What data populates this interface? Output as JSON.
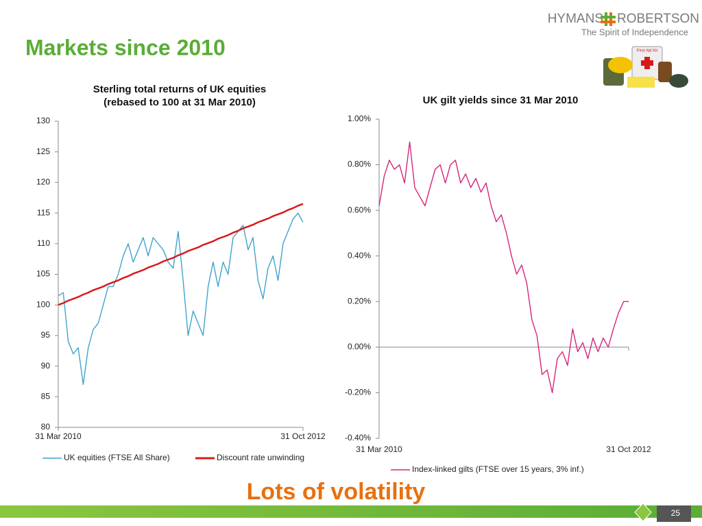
{
  "header": {
    "title": "Markets since 2010",
    "logo_left": "HYMANS",
    "logo_right": "ROBERTSON",
    "tagline": "The Spirit of Independence",
    "kit_label": "First Aid Kit"
  },
  "chart_data": [
    {
      "type": "line",
      "title": "Sterling total returns of UK equities",
      "subtitle": "(rebased to 100 at 31 Mar 2010)",
      "categories": [
        "31 Mar 2010",
        null,
        null,
        null,
        null,
        null,
        null,
        null,
        null,
        null,
        null,
        null,
        null,
        null,
        null,
        null,
        null,
        null,
        null,
        null,
        null,
        null,
        null,
        null,
        null,
        null,
        null,
        null,
        null,
        null,
        null,
        null,
        null,
        null,
        null,
        null,
        null,
        null,
        null,
        null,
        null,
        null,
        null,
        null,
        null,
        null,
        null,
        null,
        null,
        "31 Oct 2012"
      ],
      "series": [
        {
          "name": "UK equities (FTSE All Share)",
          "color": "#3fa3cc",
          "values": [
            101.5,
            102,
            94,
            92,
            93,
            87,
            93,
            96,
            97,
            100,
            103,
            103,
            105,
            108,
            110,
            107,
            109,
            111,
            108,
            111,
            110,
            109,
            107,
            106,
            112,
            104,
            95,
            99,
            97,
            95,
            103,
            107,
            103,
            107,
            105,
            111,
            112,
            113,
            109,
            111,
            104,
            101,
            106,
            108,
            104,
            110,
            112,
            114,
            115,
            113.5
          ]
        },
        {
          "name": "Discount rate unwinding",
          "color": "#d91a1a",
          "values": [
            100,
            100.3,
            100.7,
            101.0,
            101.3,
            101.7,
            102.0,
            102.4,
            102.7,
            103.0,
            103.4,
            103.7,
            104.0,
            104.4,
            104.7,
            105.1,
            105.4,
            105.7,
            106.1,
            106.4,
            106.7,
            107.1,
            107.4,
            107.7,
            108.1,
            108.4,
            108.8,
            109.1,
            109.4,
            109.8,
            110.1,
            110.4,
            110.8,
            111.1,
            111.4,
            111.8,
            112.1,
            112.5,
            112.8,
            113.1,
            113.5,
            113.8,
            114.1,
            114.5,
            114.8,
            115.1,
            115.5,
            115.8,
            116.2,
            116.5
          ]
        }
      ],
      "ylim": [
        80,
        130
      ],
      "yticks": [
        80,
        85,
        90,
        95,
        100,
        105,
        110,
        115,
        120,
        125,
        130
      ]
    },
    {
      "type": "line",
      "title": "UK gilt yields since 31 Mar 2010",
      "categories": [
        "31 Mar 2010",
        null,
        null,
        null,
        null,
        null,
        null,
        null,
        null,
        null,
        null,
        null,
        null,
        null,
        null,
        null,
        null,
        null,
        null,
        null,
        null,
        null,
        null,
        null,
        null,
        null,
        null,
        null,
        null,
        null,
        null,
        null,
        null,
        null,
        null,
        null,
        null,
        null,
        null,
        null,
        null,
        null,
        null,
        null,
        null,
        null,
        null,
        null,
        null,
        "31 Oct 2012"
      ],
      "series": [
        {
          "name": "Index-linked gilts (FTSE over 15 years, 3% inf.)",
          "color": "#d6247a",
          "values": [
            0.62,
            0.75,
            0.82,
            0.78,
            0.8,
            0.72,
            0.9,
            0.7,
            0.66,
            0.62,
            0.7,
            0.78,
            0.8,
            0.72,
            0.8,
            0.82,
            0.72,
            0.76,
            0.7,
            0.74,
            0.68,
            0.72,
            0.62,
            0.55,
            0.58,
            0.5,
            0.4,
            0.32,
            0.36,
            0.28,
            0.12,
            0.05,
            -0.12,
            -0.1,
            -0.2,
            -0.05,
            -0.02,
            -0.08,
            0.08,
            -0.02,
            0.02,
            -0.05,
            0.04,
            -0.02,
            0.04,
            0.0,
            0.08,
            0.15,
            0.2,
            0.2
          ]
        }
      ],
      "ylim": [
        -0.4,
        1.0
      ],
      "yticks": [
        {
          "value": -0.4,
          "label": "-0.40%"
        },
        {
          "value": -0.2,
          "label": "-0.20%"
        },
        {
          "value": 0,
          "label": "0.00%"
        },
        {
          "value": 0.2,
          "label": "0.20%"
        },
        {
          "value": 0.4,
          "label": "0.40%"
        },
        {
          "value": 0.6,
          "label": "0.60%"
        },
        {
          "value": 0.8,
          "label": "0.80%"
        },
        {
          "value": 1.0,
          "label": "1.00%"
        }
      ]
    }
  ],
  "footer": {
    "caption": "Lots of volatility",
    "page": "25"
  }
}
